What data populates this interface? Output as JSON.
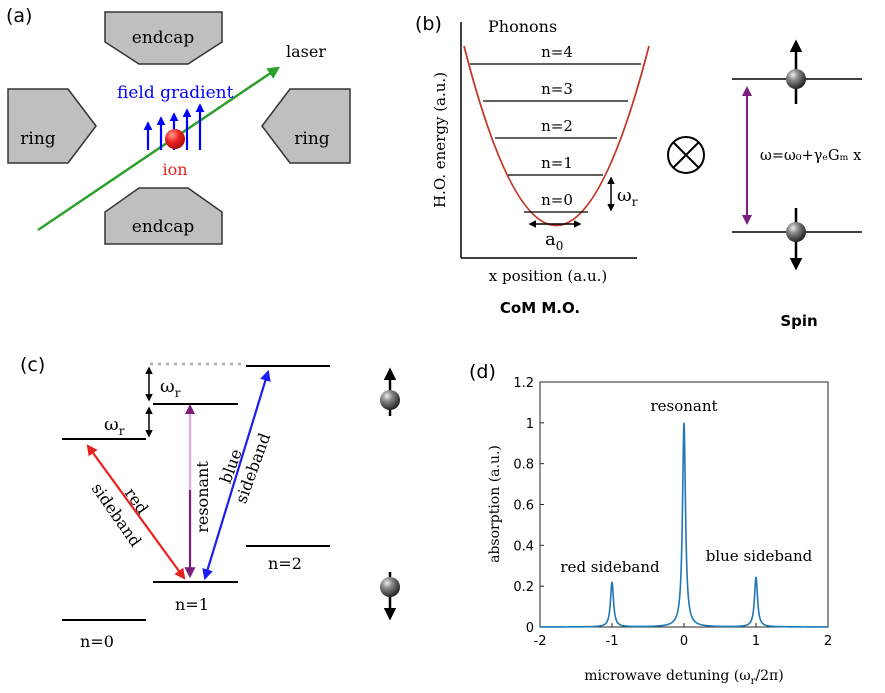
{
  "panel_a": {
    "label": "(a)",
    "endcap_top": "endcap",
    "endcap_bottom": "endcap",
    "ring_left": "ring",
    "ring_right": "ring",
    "laser": "laser",
    "field_gradient": "field gradient",
    "ion": "ion",
    "colors": {
      "electrode": "#bfbfbf",
      "laser": "#2ca02c",
      "field": "#0000ff",
      "ion": "#e8211f"
    }
  },
  "panel_b": {
    "label": "(b)",
    "phonons_title": "Phonons",
    "levels": [
      "n=4",
      "n=3",
      "n=2",
      "n=1",
      "n=0"
    ],
    "omega_r": "ω",
    "omega_r_sub": "r",
    "a0": "a",
    "a0_sub": "0",
    "ylabel": "H.O. energy (a.u.)",
    "xlabel": "x position (a.u.)",
    "caption_left": "CoM M.O.",
    "tensor": "⊗",
    "formula": "ω=ω₀+γₑGₘ x",
    "caption_right": "Spin",
    "colors": {
      "parabola": "#c0392b",
      "purple": "#7b1f7b"
    }
  },
  "panel_c": {
    "label": "(c)",
    "omega_r_top": "ω",
    "omega_r_top_sub": "r",
    "omega_r_left": "ω",
    "omega_r_left_sub": "r",
    "red_sideband_1": "red",
    "red_sideband_2": "sideband",
    "resonant": "resonant",
    "blue_sideband_1": "blue",
    "blue_sideband_2": "sideband",
    "n2": "n=2",
    "n1": "n=1",
    "n0": "n=0",
    "colors": {
      "red": "#e8211f",
      "blue": "#1d1df0",
      "purple": "#7b1f7b",
      "purple_light": "#e0a8e0"
    }
  },
  "chart_data": {
    "type": "line",
    "label": "(d)",
    "xlabel": "microwave detuning (ω_r/2π)",
    "ylabel": "absorption (a.u.)",
    "xlim": [
      -2,
      2
    ],
    "ylim": [
      0,
      1.2
    ],
    "xticks": [
      "-2",
      "-1",
      "0",
      "1",
      "2"
    ],
    "yticks": [
      "0",
      "0.2",
      "0.4",
      "0.6",
      "0.8",
      "1",
      "1.2"
    ],
    "annotations": [
      "resonant",
      "red sideband",
      "blue sideband"
    ],
    "series": [
      {
        "peaks": [
          {
            "x": -1,
            "y": 0.22
          },
          {
            "x": 0,
            "y": 1.0
          },
          {
            "x": 1,
            "y": 0.245
          }
        ],
        "color": "#1f77b4"
      }
    ],
    "grid": false
  }
}
